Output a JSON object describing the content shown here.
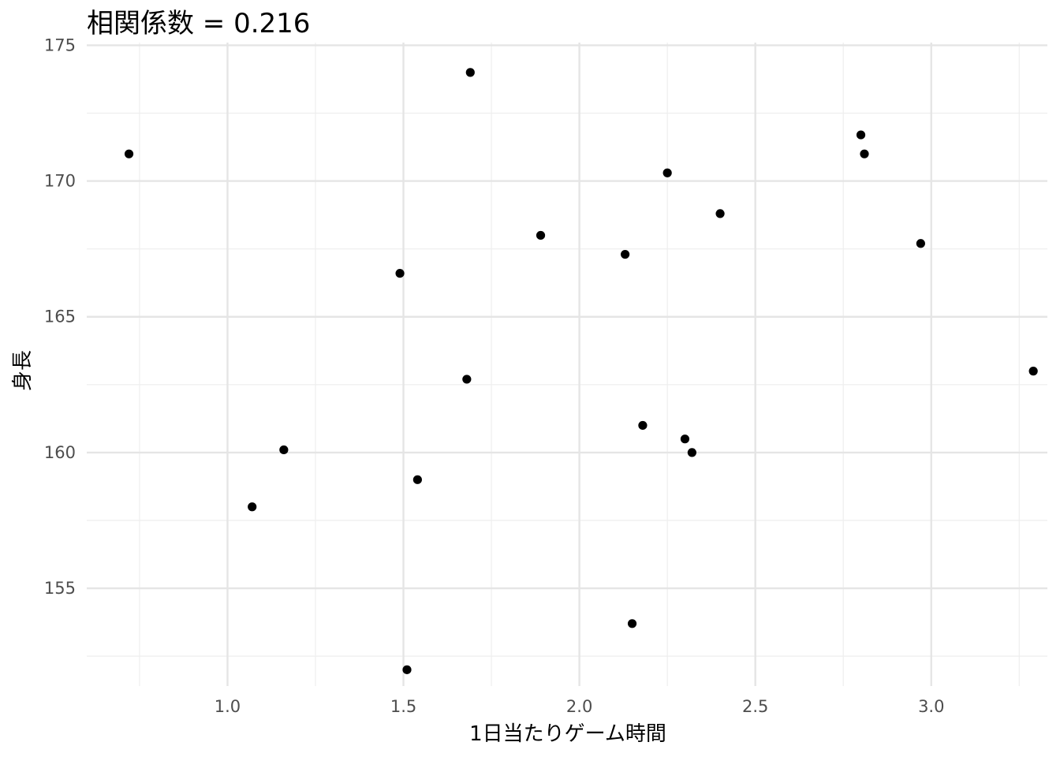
{
  "chart_data": {
    "type": "scatter",
    "title": "相関係数 = 0.216",
    "xlabel": "1日当たりゲーム時間",
    "ylabel": "身長",
    "xlim": [
      0.6,
      3.33
    ],
    "ylim": [
      151.4,
      175.1
    ],
    "x_major_ticks": [
      1.0,
      1.5,
      2.0,
      2.5,
      3.0
    ],
    "x_tick_labels": [
      "1.0",
      "1.5",
      "2.0",
      "2.5",
      "3.0"
    ],
    "x_minor_ticks": [
      0.75,
      1.25,
      1.75,
      2.25,
      2.75,
      3.25
    ],
    "y_major_ticks": [
      155,
      160,
      165,
      170,
      175
    ],
    "y_tick_labels": [
      "155",
      "160",
      "165",
      "170",
      "175"
    ],
    "y_minor_ticks": [
      152.5,
      157.5,
      162.5,
      167.5,
      172.5
    ],
    "grid": true,
    "point_color": "#000000",
    "points": [
      {
        "x": 0.72,
        "y": 171.0
      },
      {
        "x": 1.07,
        "y": 158.0
      },
      {
        "x": 1.16,
        "y": 160.1
      },
      {
        "x": 1.49,
        "y": 166.6
      },
      {
        "x": 1.51,
        "y": 152.0
      },
      {
        "x": 1.54,
        "y": 159.0
      },
      {
        "x": 1.68,
        "y": 162.7
      },
      {
        "x": 1.69,
        "y": 174.0
      },
      {
        "x": 1.89,
        "y": 168.0
      },
      {
        "x": 2.13,
        "y": 167.3
      },
      {
        "x": 2.15,
        "y": 153.7
      },
      {
        "x": 2.18,
        "y": 161.0
      },
      {
        "x": 2.25,
        "y": 170.3
      },
      {
        "x": 2.3,
        "y": 160.5
      },
      {
        "x": 2.32,
        "y": 160.0
      },
      {
        "x": 2.4,
        "y": 168.8
      },
      {
        "x": 2.8,
        "y": 171.7
      },
      {
        "x": 2.81,
        "y": 171.0
      },
      {
        "x": 2.97,
        "y": 167.7
      },
      {
        "x": 3.29,
        "y": 163.0
      }
    ]
  }
}
